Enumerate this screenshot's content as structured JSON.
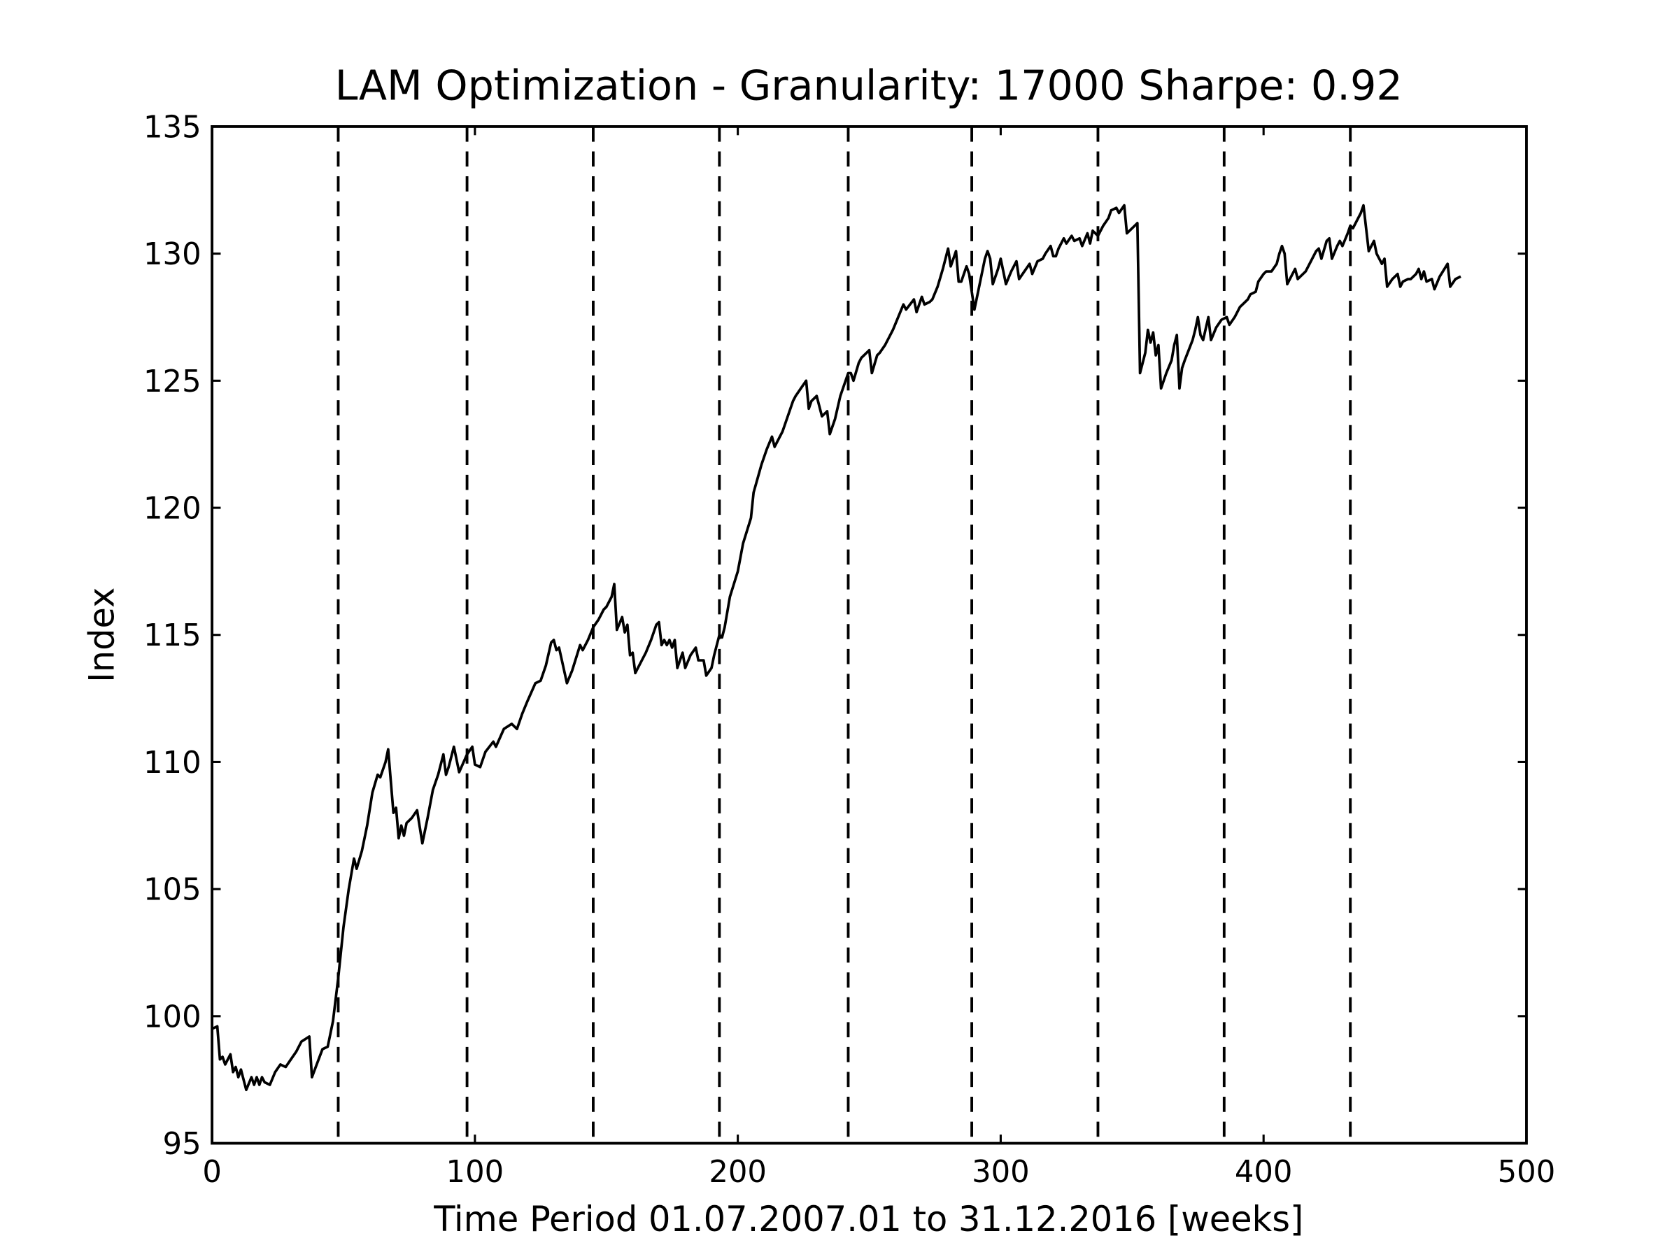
{
  "chart_data": {
    "type": "line",
    "title": "LAM Optimization - Granularity: 17000 Sharpe: 0.92",
    "x_label": "Time Period 01.07.2007.01 to 31.12.2016 [weeks]",
    "y_label": "Index",
    "xlim": [
      0,
      500
    ],
    "ylim": [
      95,
      135
    ],
    "xticks": [
      0,
      100,
      200,
      300,
      400,
      500
    ],
    "yticks": [
      95,
      100,
      105,
      110,
      115,
      120,
      125,
      130,
      135
    ],
    "grid": false,
    "vlines": [
      48,
      97,
      145,
      193,
      242,
      289,
      337,
      385,
      433
    ],
    "vline_color": "#000000",
    "x": [
      0,
      2,
      3,
      4,
      5,
      7,
      8,
      9,
      10,
      11,
      13,
      15,
      16,
      17,
      18,
      19,
      20,
      22,
      24,
      26,
      28,
      30,
      32,
      34,
      37,
      38,
      42,
      44,
      46,
      48,
      50,
      52,
      54,
      55,
      57,
      59,
      61,
      63,
      64,
      66,
      67,
      69,
      70,
      71,
      72,
      73,
      74,
      76,
      78,
      80,
      82,
      84,
      86,
      88,
      89,
      90,
      92,
      94,
      97,
      99,
      100,
      102,
      104,
      107,
      108,
      111,
      114,
      116,
      118,
      120,
      123,
      125,
      127,
      129,
      130,
      131,
      132,
      135,
      137,
      140,
      141,
      143,
      145,
      147,
      149,
      150,
      152,
      153,
      154,
      156,
      157,
      158,
      159,
      160,
      161,
      163,
      165,
      167,
      169,
      170,
      171,
      172,
      173,
      174,
      175,
      176,
      177,
      179,
      180,
      182,
      184,
      185,
      187,
      188,
      190,
      191,
      193,
      194,
      195,
      197,
      200,
      202,
      205,
      206,
      209,
      211,
      213,
      214,
      217,
      219,
      221,
      222,
      224,
      226,
      227,
      228,
      230,
      232,
      234,
      235,
      237,
      239,
      241,
      242,
      243,
      244,
      246,
      247,
      250,
      251,
      253,
      254,
      256,
      257,
      259,
      261,
      263,
      264,
      267,
      268,
      270,
      271,
      273,
      274,
      276,
      278,
      280,
      281,
      283,
      284,
      285,
      287,
      288,
      289,
      290,
      292,
      294,
      295,
      296,
      297,
      299,
      300,
      302,
      304,
      306,
      307,
      309,
      311,
      312,
      314,
      316,
      317,
      319,
      320,
      321,
      322,
      324,
      325,
      327,
      328,
      330,
      331,
      333,
      334,
      335,
      337,
      339,
      341,
      342,
      344,
      345,
      347,
      348,
      351,
      352,
      353,
      355,
      356,
      357,
      358,
      359,
      360,
      361,
      363,
      365,
      366,
      367,
      368,
      369,
      370,
      373,
      374,
      375,
      376,
      377,
      379,
      380,
      382,
      384,
      386,
      387,
      389,
      391,
      394,
      395,
      397,
      398,
      400,
      401,
      403,
      405,
      406,
      407,
      408,
      409,
      411,
      412,
      413,
      416,
      418,
      420,
      421,
      422,
      424,
      425,
      426,
      428,
      429,
      430,
      432,
      433,
      434,
      435,
      437,
      438,
      440,
      442,
      443,
      445,
      446,
      447,
      449,
      451,
      452,
      453,
      455,
      456,
      458,
      459,
      460,
      461,
      462,
      464,
      465,
      467,
      470,
      471,
      473,
      475
    ],
    "series": [
      {
        "color": "#000000",
        "values": [
          99.5,
          99.6,
          98.3,
          98.4,
          98.1,
          98.5,
          97.8,
          98.0,
          97.6,
          97.9,
          97.1,
          97.6,
          97.3,
          97.6,
          97.3,
          97.6,
          97.4,
          97.3,
          97.8,
          98.1,
          98.0,
          98.3,
          98.6,
          99.0,
          99.2,
          97.6,
          98.7,
          98.8,
          99.8,
          101.5,
          103.5,
          105.0,
          106.2,
          105.8,
          106.5,
          107.5,
          108.8,
          109.5,
          109.4,
          110.0,
          110.5,
          108.0,
          108.2,
          107.0,
          107.5,
          107.1,
          107.6,
          107.8,
          108.1,
          106.8,
          107.8,
          108.9,
          109.5,
          110.3,
          109.5,
          109.8,
          110.6,
          109.6,
          110.3,
          110.6,
          109.9,
          109.8,
          110.4,
          110.8,
          110.6,
          111.3,
          111.5,
          111.3,
          111.9,
          112.4,
          113.1,
          113.2,
          113.8,
          114.7,
          114.8,
          114.4,
          114.5,
          113.1,
          113.6,
          114.6,
          114.4,
          114.8,
          115.3,
          115.6,
          116.0,
          116.1,
          116.5,
          117.0,
          115.2,
          115.7,
          115.1,
          115.4,
          114.2,
          114.3,
          113.5,
          113.9,
          114.3,
          114.8,
          115.4,
          115.5,
          114.6,
          114.8,
          114.6,
          114.8,
          114.5,
          114.8,
          113.7,
          114.3,
          113.7,
          114.2,
          114.5,
          114.0,
          114.0,
          113.4,
          113.7,
          114.2,
          115.0,
          114.9,
          115.3,
          116.5,
          117.5,
          118.6,
          119.6,
          120.6,
          121.7,
          122.3,
          122.8,
          122.4,
          123.0,
          123.6,
          124.2,
          124.4,
          124.7,
          125.0,
          123.9,
          124.2,
          124.4,
          123.6,
          123.8,
          122.9,
          123.5,
          124.4,
          125.0,
          125.3,
          125.3,
          125.0,
          125.7,
          125.9,
          126.2,
          125.3,
          126.0,
          126.1,
          126.4,
          126.6,
          127.0,
          127.5,
          128.0,
          127.8,
          128.2,
          127.7,
          128.3,
          128.0,
          128.1,
          128.2,
          128.7,
          129.4,
          130.2,
          129.5,
          130.1,
          128.9,
          128.9,
          129.5,
          129.2,
          128.5,
          127.8,
          128.8,
          129.8,
          130.1,
          129.8,
          128.8,
          129.4,
          129.8,
          128.8,
          129.3,
          129.7,
          129.0,
          129.3,
          129.6,
          129.2,
          129.7,
          129.8,
          130.0,
          130.3,
          129.9,
          129.9,
          130.2,
          130.6,
          130.4,
          130.7,
          130.5,
          130.6,
          130.3,
          130.8,
          130.4,
          130.9,
          130.7,
          131.1,
          131.4,
          131.7,
          131.8,
          131.6,
          131.9,
          130.8,
          131.1,
          131.2,
          125.3,
          126.1,
          127.0,
          126.5,
          126.9,
          126.0,
          126.4,
          124.7,
          125.3,
          125.8,
          126.4,
          126.8,
          124.7,
          125.5,
          125.8,
          126.6,
          127.0,
          127.5,
          126.8,
          126.6,
          127.5,
          126.6,
          127.1,
          127.4,
          127.5,
          127.2,
          127.5,
          127.9,
          128.2,
          128.4,
          128.5,
          128.9,
          129.2,
          129.3,
          129.3,
          129.6,
          130.0,
          130.3,
          130.0,
          128.8,
          129.2,
          129.4,
          129.0,
          129.3,
          129.7,
          130.1,
          130.2,
          129.8,
          130.5,
          130.6,
          129.8,
          130.3,
          130.5,
          130.3,
          130.8,
          131.1,
          131.0,
          131.2,
          131.6,
          131.9,
          130.1,
          130.5,
          130.0,
          129.6,
          129.8,
          128.7,
          129.0,
          129.2,
          128.7,
          128.9,
          129.0,
          129.0,
          129.2,
          129.4,
          129.0,
          129.3,
          128.9,
          129.0,
          128.6,
          129.1,
          129.6,
          128.7,
          129.0,
          129.1
        ]
      }
    ]
  }
}
